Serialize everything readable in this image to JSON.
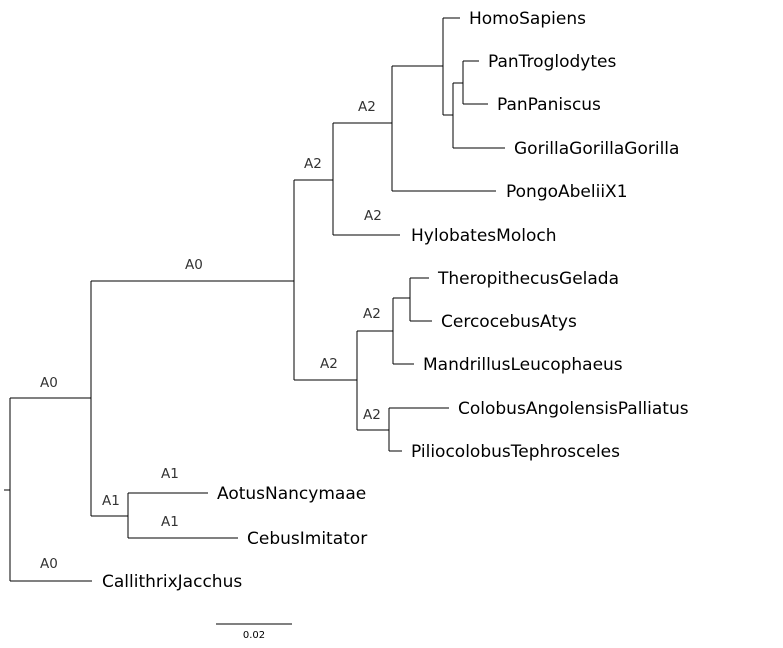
{
  "taxa": {
    "homo_sapiens": "HomoSapiens",
    "pan_troglodytes": "PanTroglodytes",
    "pan_paniscus": "PanPaniscus",
    "gorilla": "GorillaGorillaGorilla",
    "pongo": "PongoAbeliiX1",
    "hylobates": "HylobatesMoloch",
    "theropithecus": "TheropithecusGelada",
    "cercocebus": "CercocebusAtys",
    "mandrillus": "MandrillusLeucophaeus",
    "colobus": "ColobusAngolensisPalliatus",
    "piliocolobus": "PiliocolobusTephrosceles",
    "aotus": "AotusNancymaae",
    "cebus": "CebusImitator",
    "callithrix": "CallithrixJacchus"
  },
  "branch_labels": {
    "root_upper": "A0",
    "root_lower": "A0",
    "catarrhini": "A0",
    "platyrrhini": "A1",
    "aotus": "A1",
    "cebus": "A1",
    "hominoidea": "A2",
    "hominidae": "A2",
    "hylobates": "A2",
    "cercopithecoidea": "A2",
    "papionini": "A2",
    "colobinae": "A2"
  },
  "scale_bar": {
    "label": "0.02"
  }
}
